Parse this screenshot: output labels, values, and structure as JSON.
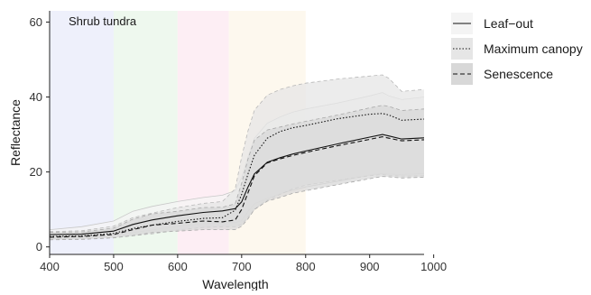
{
  "chart_data": {
    "type": "line",
    "panel_label": "Shrub tundra",
    "xlabel": "Wavelength",
    "ylabel": "Reflectance",
    "xlim": [
      400,
      985
    ],
    "ylim": [
      -2,
      63
    ],
    "x_ticks": [
      400,
      500,
      600,
      700,
      800,
      900,
      1000
    ],
    "y_ticks": [
      0,
      20,
      40,
      60
    ],
    "grid": false,
    "legend_position": "right",
    "spectral_bands": [
      {
        "start": 400,
        "end": 500,
        "color": "#eef0fb"
      },
      {
        "start": 500,
        "end": 600,
        "color": "#eef8ee"
      },
      {
        "start": 600,
        "end": 680,
        "color": "#fdeef4"
      },
      {
        "start": 680,
        "end": 800,
        "color": "#fdf8ee"
      }
    ],
    "series": [
      {
        "name": "Leaf−out",
        "line_style": "solid",
        "ribbon_fill": "#f4f4f4",
        "ribbon_stroke": "#c8c8c8",
        "ribbon_dash": "none",
        "x": [
          400,
          450,
          500,
          530,
          560,
          600,
          640,
          670,
          690,
          700,
          710,
          720,
          740,
          760,
          780,
          800,
          850,
          900,
          920,
          930,
          950,
          985
        ],
        "mean": [
          3.3,
          3.4,
          4.2,
          6.0,
          7.2,
          8.3,
          9.2,
          9.6,
          10.2,
          12.0,
          16.0,
          19.5,
          22.6,
          23.8,
          24.8,
          25.6,
          27.5,
          29.3,
          30.0,
          29.6,
          28.8,
          29.1
        ],
        "upper": [
          4.6,
          5.4,
          6.9,
          9.5,
          10.8,
          12.1,
          13.2,
          13.8,
          15.0,
          18.5,
          24.0,
          29.0,
          33.0,
          34.7,
          36.0,
          36.8,
          38.4,
          40.3,
          41.2,
          40.3,
          39.3,
          40.0
        ],
        "lower": [
          2.2,
          2.5,
          2.9,
          3.8,
          4.5,
          5.5,
          6.2,
          6.5,
          6.5,
          7.0,
          9.5,
          11.5,
          13.0,
          14.2,
          15.2,
          16.0,
          17.5,
          19.2,
          19.6,
          19.4,
          19.3,
          19.6
        ]
      },
      {
        "name": "Maximum canopy",
        "line_style": "dotted",
        "ribbon_fill": "#e6e6e6",
        "ribbon_stroke": "#b8b8b8",
        "ribbon_dash": "4,3",
        "x": [
          400,
          450,
          500,
          530,
          560,
          600,
          640,
          670,
          690,
          700,
          710,
          720,
          740,
          760,
          780,
          800,
          850,
          900,
          920,
          930,
          950,
          985
        ],
        "mean": [
          2.8,
          2.9,
          3.6,
          4.9,
          5.8,
          6.8,
          7.6,
          7.8,
          9.8,
          14.0,
          19.5,
          24.5,
          29.0,
          30.8,
          31.8,
          32.4,
          34.2,
          35.4,
          35.6,
          35.2,
          33.8,
          34.1
        ],
        "upper": [
          4.1,
          4.3,
          5.5,
          7.8,
          9.0,
          10.5,
          11.6,
          12.1,
          15.5,
          24.0,
          31.0,
          36.5,
          40.5,
          42.0,
          43.0,
          43.7,
          44.8,
          45.6,
          45.9,
          45.0,
          41.5,
          42.0
        ],
        "lower": [
          2.0,
          2.2,
          2.5,
          3.0,
          3.5,
          4.5,
          5.2,
          5.4,
          5.4,
          6.0,
          8.0,
          10.0,
          12.5,
          14.0,
          15.5,
          16.5,
          17.8,
          19.0,
          19.3,
          19.1,
          18.9,
          19.0
        ]
      },
      {
        "name": "Senescence",
        "line_style": "dashed",
        "ribbon_fill": "#d8d8d8",
        "ribbon_stroke": "#a8a8a8",
        "ribbon_dash": "4,3",
        "x": [
          400,
          450,
          500,
          530,
          560,
          600,
          640,
          670,
          690,
          700,
          710,
          720,
          740,
          760,
          780,
          800,
          850,
          900,
          920,
          930,
          950,
          985
        ],
        "mean": [
          2.6,
          2.8,
          3.3,
          4.6,
          5.8,
          6.3,
          6.9,
          6.7,
          7.2,
          10.0,
          14.5,
          19.0,
          22.4,
          23.5,
          24.4,
          25.2,
          27.0,
          28.7,
          29.4,
          29.0,
          28.3,
          28.6
        ],
        "upper": [
          3.9,
          4.0,
          5.0,
          7.4,
          8.8,
          9.5,
          10.5,
          10.6,
          11.5,
          17.0,
          23.5,
          28.5,
          31.2,
          32.0,
          32.8,
          33.5,
          35.2,
          37.1,
          37.8,
          37.5,
          36.4,
          36.8
        ],
        "lower": [
          1.9,
          2.0,
          2.4,
          3.0,
          3.8,
          4.2,
          4.6,
          4.6,
          4.6,
          5.5,
          7.5,
          10.0,
          12.2,
          13.2,
          14.3,
          15.0,
          16.6,
          18.2,
          18.8,
          18.7,
          18.4,
          18.6
        ]
      }
    ]
  }
}
